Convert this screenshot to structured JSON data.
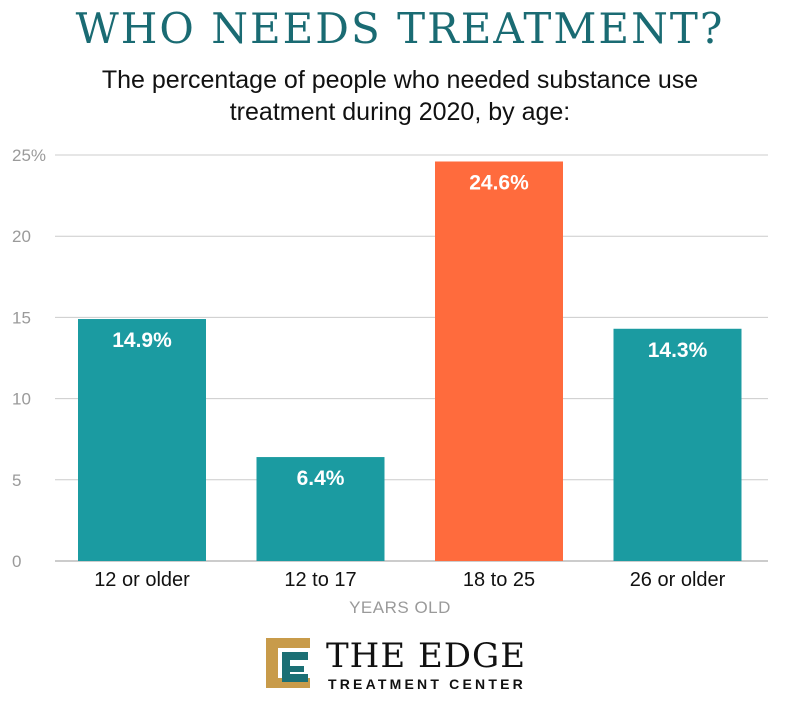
{
  "chart_data": {
    "type": "bar",
    "title": "WHO NEEDS TREATMENT?",
    "subtitle": "The percentage of people who needed substance use treatment during 2020, by age:",
    "categories": [
      "12 or older",
      "12 to 17",
      "18 to 25",
      "26 or older"
    ],
    "values": [
      14.9,
      6.4,
      24.6,
      14.3
    ],
    "data_labels": [
      "14.9%",
      "6.4%",
      "24.6%",
      "14.3%"
    ],
    "xlabel": "YEARS OLD",
    "ylabel": "",
    "ylim": [
      0,
      25
    ],
    "yticks": [
      0,
      5,
      10,
      15,
      20,
      25
    ],
    "ytick_labels": [
      "0",
      "5",
      "10",
      "15",
      "20",
      "25%"
    ],
    "grid": true,
    "colors": [
      "#1b9ba1",
      "#1b9ba1",
      "#ff6b3d",
      "#1b9ba1"
    ]
  },
  "brand": {
    "name": "THE EDGE",
    "sub": "TREATMENT CENTER",
    "colors": {
      "gold": "#c89b4a",
      "teal": "#1b6f74"
    }
  }
}
